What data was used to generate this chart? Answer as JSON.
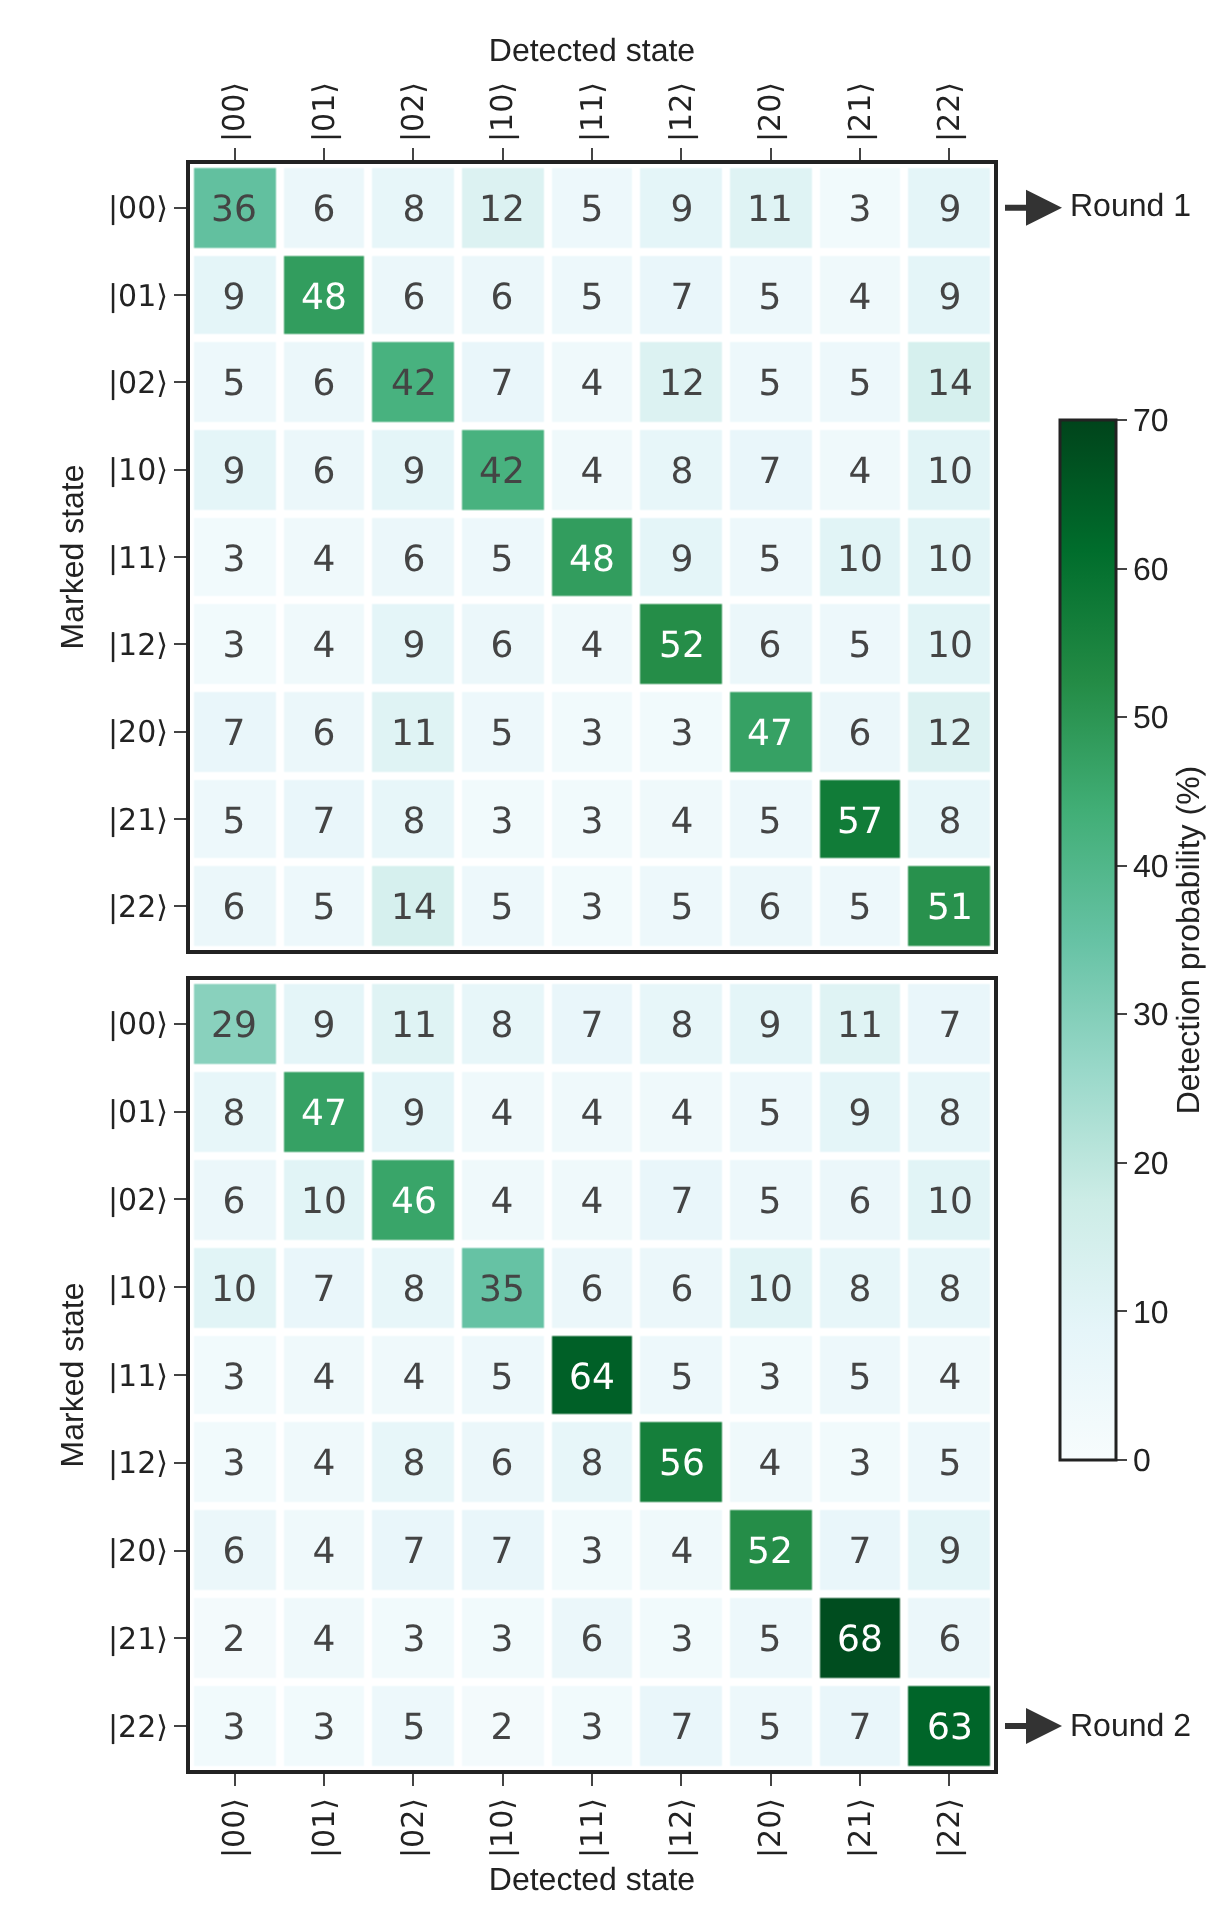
{
  "chart_data": [
    {
      "type": "heatmap",
      "xlabel": "Detected state",
      "ylabel": "Marked state",
      "annotations": [
        "Round 1"
      ],
      "categories": [
        "|00⟩",
        "|01⟩",
        "|02⟩",
        "|10⟩",
        "|11⟩",
        "|12⟩",
        "|20⟩",
        "|21⟩",
        "|22⟩"
      ],
      "y_categories": [
        "|00⟩",
        "|01⟩",
        "|02⟩",
        "|10⟩",
        "|11⟩",
        "|12⟩",
        "|20⟩",
        "|21⟩",
        "|22⟩"
      ],
      "cells": [
        [
          36,
          6,
          8,
          12,
          5,
          9,
          11,
          3,
          9
        ],
        [
          9,
          48,
          6,
          6,
          5,
          7,
          5,
          4,
          9
        ],
        [
          5,
          6,
          42,
          7,
          4,
          12,
          5,
          5,
          14
        ],
        [
          9,
          6,
          9,
          42,
          4,
          8,
          7,
          4,
          10
        ],
        [
          3,
          4,
          6,
          5,
          48,
          9,
          5,
          10,
          10
        ],
        [
          3,
          4,
          9,
          6,
          4,
          52,
          6,
          5,
          10
        ],
        [
          7,
          6,
          11,
          5,
          3,
          3,
          47,
          6,
          12
        ],
        [
          5,
          7,
          8,
          3,
          3,
          4,
          5,
          57,
          8
        ],
        [
          6,
          5,
          14,
          5,
          3,
          5,
          6,
          5,
          51
        ]
      ],
      "data_labels": true,
      "clim": [
        0,
        70
      ],
      "cticks": [
        0,
        10,
        20,
        30,
        40,
        50,
        60,
        70
      ],
      "clabel": "Detection probability (%)"
    },
    {
      "type": "heatmap",
      "xlabel": "Detected state",
      "ylabel": "Marked state",
      "annotations": [
        "Round 2"
      ],
      "categories": [
        "|00⟩",
        "|01⟩",
        "|02⟩",
        "|10⟩",
        "|11⟩",
        "|12⟩",
        "|20⟩",
        "|21⟩",
        "|22⟩"
      ],
      "y_categories": [
        "|00⟩",
        "|01⟩",
        "|02⟩",
        "|10⟩",
        "|11⟩",
        "|12⟩",
        "|20⟩",
        "|21⟩",
        "|22⟩"
      ],
      "cells": [
        [
          29,
          9,
          11,
          8,
          7,
          8,
          9,
          11,
          7
        ],
        [
          8,
          47,
          9,
          4,
          4,
          4,
          5,
          9,
          8
        ],
        [
          6,
          10,
          46,
          4,
          4,
          7,
          5,
          6,
          10
        ],
        [
          10,
          7,
          8,
          35,
          6,
          6,
          10,
          8,
          8
        ],
        [
          3,
          4,
          4,
          5,
          64,
          5,
          3,
          5,
          4
        ],
        [
          3,
          4,
          8,
          6,
          8,
          56,
          4,
          3,
          5
        ],
        [
          6,
          4,
          7,
          7,
          3,
          4,
          52,
          7,
          9
        ],
        [
          2,
          4,
          3,
          3,
          6,
          3,
          5,
          68,
          6
        ],
        [
          3,
          3,
          5,
          2,
          3,
          7,
          5,
          7,
          63
        ]
      ],
      "data_labels": true
    }
  ]
}
